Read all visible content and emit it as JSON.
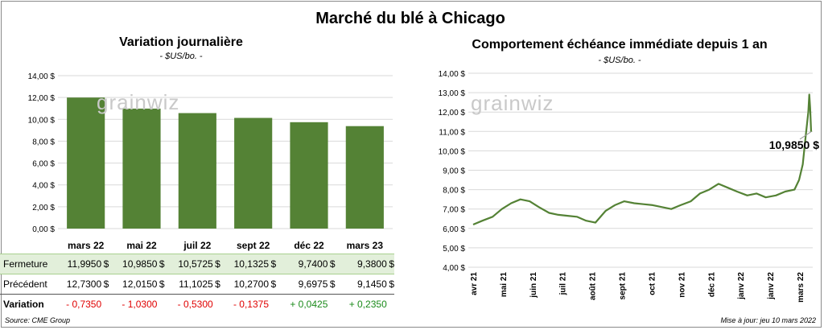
{
  "title": "Marché du blé à Chicago",
  "watermark": "grainwiz",
  "colors": {
    "bar": "#548235",
    "line": "#548235",
    "grid": "#d9d9d9",
    "table_highlight": "#e2efda",
    "negative": "#e00000",
    "positive": "#1a8a1a"
  },
  "chart_data": [
    {
      "type": "bar",
      "title": "Variation journalière",
      "subtitle": "- $US/bo. -",
      "categories": [
        "mars 22",
        "mai 22",
        "juil 22",
        "sept 22",
        "déc 22",
        "mars 23"
      ],
      "values": [
        11.995,
        10.985,
        10.5725,
        10.1325,
        9.74,
        9.38
      ],
      "ylim": [
        0,
        14
      ],
      "yticks": [
        "0,00 $",
        "2,00 $",
        "4,00 $",
        "6,00 $",
        "8,00 $",
        "10,00 $",
        "12,00 $",
        "14,00 $"
      ],
      "grid": true
    },
    {
      "type": "line",
      "title": "Comportement échéance immédiate depuis 1 an",
      "subtitle": "- $US/bo. -",
      "ylim": [
        4,
        14
      ],
      "yticks": [
        "4,00 $",
        "5,00 $",
        "6,00 $",
        "7,00 $",
        "8,00 $",
        "9,00 $",
        "10,00 $",
        "11,00 $",
        "12,00 $",
        "13,00 $",
        "14,00 $"
      ],
      "xticks": [
        "avr 21",
        "mai 21",
        "juin 21",
        "juil 21",
        "août 21",
        "sept 21",
        "oct 21",
        "nov 21",
        "déc 21",
        "janv 22",
        "janv 22",
        "mars 22"
      ],
      "x": [
        "2021-03-10",
        "2021-03-20",
        "2021-03-31",
        "2021-04-10",
        "2021-04-20",
        "2021-04-30",
        "2021-05-10",
        "2021-05-20",
        "2021-05-31",
        "2021-06-10",
        "2021-06-20",
        "2021-06-30",
        "2021-07-10",
        "2021-07-20",
        "2021-07-31",
        "2021-08-10",
        "2021-08-20",
        "2021-08-31",
        "2021-09-10",
        "2021-09-20",
        "2021-09-30",
        "2021-10-10",
        "2021-10-20",
        "2021-10-31",
        "2021-11-10",
        "2021-11-20",
        "2021-11-30",
        "2021-12-10",
        "2021-12-20",
        "2021-12-31",
        "2022-01-10",
        "2022-01-20",
        "2022-01-31",
        "2022-02-10",
        "2022-02-20",
        "2022-02-25",
        "2022-03-01",
        "2022-03-04",
        "2022-03-07",
        "2022-03-08",
        "2022-03-09",
        "2022-03-10"
      ],
      "values": [
        6.2,
        6.4,
        6.6,
        7.0,
        7.3,
        7.5,
        7.4,
        7.1,
        6.8,
        6.7,
        6.65,
        6.6,
        6.4,
        6.3,
        6.9,
        7.2,
        7.4,
        7.3,
        7.25,
        7.2,
        7.1,
        7.0,
        7.2,
        7.4,
        7.8,
        8.0,
        8.3,
        8.1,
        7.9,
        7.7,
        7.8,
        7.6,
        7.7,
        7.9,
        8.0,
        8.5,
        9.3,
        10.7,
        12.0,
        12.9,
        12.2,
        10.985
      ],
      "grid": true,
      "last_label": "10,9850 $"
    }
  ],
  "table": {
    "rows": [
      {
        "label": "Fermeture",
        "values": [
          "11,9950",
          "10,9850",
          "10,5725",
          "10,1325",
          "9,7400",
          "9,3800"
        ],
        "currency": "$"
      },
      {
        "label": "Précédent",
        "values": [
          "12,7300",
          "12,0150",
          "11,1025",
          "10,2700",
          "9,6975",
          "9,1450"
        ],
        "currency": "$"
      },
      {
        "label": "Variation",
        "values": [
          "- 0,7350",
          "- 1,0300",
          "- 0,5300",
          "- 0,1375",
          "+ 0,0425",
          "+ 0,2350"
        ]
      }
    ]
  },
  "footer": {
    "source": "Source: CME Group",
    "update": "Mise à jour: jeu 10 mars 2022"
  }
}
